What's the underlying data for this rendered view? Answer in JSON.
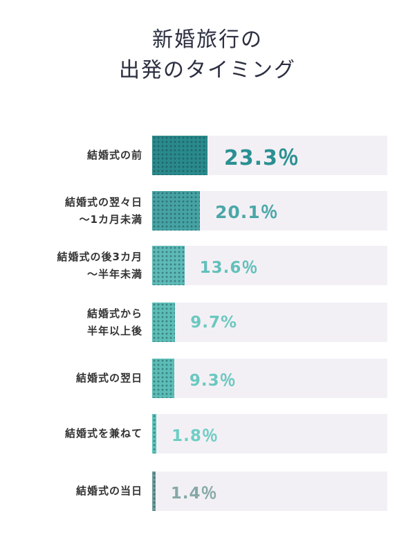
{
  "title": [
    "新婚旅行の",
    "出発のタイミング"
  ],
  "chart_data": {
    "type": "bar",
    "orientation": "horizontal",
    "title": "新婚旅行の出発のタイミング",
    "categories": [
      [
        "結婚式の前"
      ],
      [
        "結婚式の翌々日",
        "〜1カ月未満"
      ],
      [
        "結婚式の後3カ月",
        "〜半年未満"
      ],
      [
        "結婚式から",
        "半年以上後"
      ],
      [
        "結婚式の翌日"
      ],
      [
        "結婚式を兼ねて"
      ],
      [
        "結婚式の当日"
      ]
    ],
    "values": [
      23.3,
      20.1,
      13.6,
      9.7,
      9.3,
      1.8,
      1.4
    ],
    "value_labels": [
      "23.3％",
      "20.1％",
      "13.6％",
      "9.7%",
      "9.3％",
      "1.8％",
      "1.4％"
    ],
    "unit": "%",
    "xlim": [
      0,
      100
    ],
    "grid": false,
    "colors": {
      "bars": [
        "#2a8a8b",
        "#46a3a4",
        "#5dbab6",
        "#5bbdb6",
        "#5bbdb6",
        "#5cc4bb",
        "#6f9e9e"
      ],
      "labels": [
        "#2a9092",
        "#4aa7a8",
        "#62c0bb",
        "#6ac8c0",
        "#6ac8c0",
        "#6dcec4",
        "#86a9a8"
      ],
      "track": "#f3f0f5"
    }
  }
}
